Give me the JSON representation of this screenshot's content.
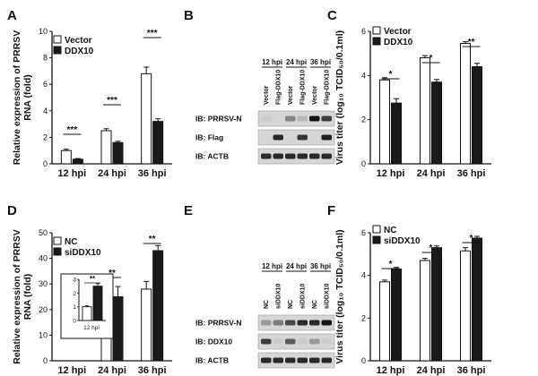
{
  "panel_letters": [
    "A",
    "B",
    "C",
    "D",
    "E",
    "F"
  ],
  "chart_data": [
    {
      "id": "A",
      "type": "bar",
      "ylabel_lines": [
        "Relative expression of PRRSV",
        "RNA (fold)"
      ],
      "categories": [
        "12 hpi",
        "24 hpi",
        "36 hpi"
      ],
      "ylim": [
        0,
        10
      ],
      "yticks": [
        "0",
        "2",
        "4",
        "6",
        "8",
        "10"
      ],
      "legend": [
        "Vector",
        "DDX10"
      ],
      "series": [
        {
          "name": "Vector",
          "values": [
            1.0,
            2.5,
            6.8
          ],
          "err": [
            0.1,
            0.15,
            0.5
          ],
          "fill": "#ffffff"
        },
        {
          "name": "DDX10",
          "values": [
            0.35,
            1.6,
            3.2
          ],
          "err": [
            0.05,
            0.1,
            0.2
          ],
          "fill": "#1a1a1a"
        }
      ],
      "significance": [
        "***",
        "***",
        "***"
      ]
    },
    {
      "id": "C",
      "type": "bar",
      "ylabel_lines": [
        "Virus titer (log₁₀ TCID₅₀/0.1ml)"
      ],
      "categories": [
        "12 hpi",
        "24 hpi",
        "36 hpi"
      ],
      "ylim": [
        0,
        6
      ],
      "yticks": [
        "0",
        "2",
        "4",
        "6"
      ],
      "legend": [
        "Vector",
        "DDX10"
      ],
      "series": [
        {
          "name": "Vector",
          "values": [
            3.8,
            4.8,
            5.45
          ],
          "err": [
            0.1,
            0.1,
            0.08
          ],
          "fill": "#ffffff"
        },
        {
          "name": "DDX10",
          "values": [
            2.75,
            3.7,
            4.4
          ],
          "err": [
            0.2,
            0.12,
            0.15
          ],
          "fill": "#1a1a1a"
        }
      ],
      "significance": [
        "*",
        "*",
        "**"
      ]
    },
    {
      "id": "D",
      "type": "bar",
      "ylabel_lines": [
        "Relative expression of PRRSV",
        "RNA (fold)"
      ],
      "categories": [
        "12 hpi",
        "24 hpi",
        "36 hpi"
      ],
      "ylim": [
        0,
        50
      ],
      "yticks": [
        "0",
        "10",
        "20",
        "30",
        "40",
        "50"
      ],
      "legend": [
        "NC",
        "siDDX10"
      ],
      "series": [
        {
          "name": "NC",
          "values": [
            0,
            10,
            28
          ],
          "err": [
            0,
            2,
            3
          ],
          "fill": "#ffffff"
        },
        {
          "name": "siDDX10",
          "values": [
            0,
            25,
            43
          ],
          "err": [
            0,
            4,
            2
          ],
          "fill": "#1a1a1a"
        }
      ],
      "significance": [
        "",
        "**",
        "**"
      ],
      "inset": {
        "category": "12 hpi",
        "ylim": [
          0,
          3
        ],
        "yticks": [
          "0",
          "1",
          "2",
          "3"
        ],
        "values": [
          1.0,
          2.5
        ],
        "err": [
          0.08,
          0.18
        ],
        "significance": "**"
      }
    },
    {
      "id": "F",
      "type": "bar",
      "ylabel_lines": [
        "Virus titer (log₁₀ TCID₅₀/0.1ml)"
      ],
      "categories": [
        "12 hpi",
        "24 hpi",
        "36 hpi"
      ],
      "ylim": [
        0,
        6
      ],
      "yticks": [
        "0",
        "2",
        "4",
        "6"
      ],
      "legend": [
        "NC",
        "siDDX10"
      ],
      "series": [
        {
          "name": "NC",
          "values": [
            3.7,
            4.7,
            5.15
          ],
          "err": [
            0.08,
            0.1,
            0.15
          ],
          "fill": "#ffffff"
        },
        {
          "name": "siDDX10",
          "values": [
            4.3,
            5.3,
            5.75
          ],
          "err": [
            0.08,
            0.08,
            0.08
          ],
          "fill": "#1a1a1a"
        }
      ],
      "significance": [
        "*",
        "*",
        "*"
      ]
    }
  ],
  "blots": [
    {
      "id": "B",
      "timepoints": [
        "12 hpi",
        "24 hpi",
        "36 hpi"
      ],
      "lanes": [
        "Vector",
        "Flag-DDX10",
        "Vector",
        "Flag-DDX10",
        "Vector",
        "Flag-DDX10"
      ],
      "rows": [
        {
          "label": "IB: PRRSV-N",
          "intensity": [
            0.05,
            0.0,
            0.4,
            0.15,
            0.95,
            0.75
          ]
        },
        {
          "label": "IB: Flag",
          "intensity": [
            0.0,
            0.85,
            0.0,
            0.8,
            0.0,
            0.9
          ]
        },
        {
          "label": "IB: ACTB",
          "intensity": [
            0.85,
            0.85,
            0.85,
            0.85,
            0.85,
            0.85
          ]
        }
      ]
    },
    {
      "id": "E",
      "timepoints": [
        "12 hpi",
        "24 hpi",
        "36 hpi"
      ],
      "lanes": [
        "NC",
        "siDDX10",
        "NC",
        "siDDX10",
        "NC",
        "siDDX10"
      ],
      "rows": [
        {
          "label": "IB: PRRSV-N",
          "intensity": [
            0.3,
            0.45,
            0.7,
            0.85,
            0.85,
            0.95
          ]
        },
        {
          "label": "IB: DDX10",
          "intensity": [
            0.75,
            0.05,
            0.6,
            0.05,
            0.3,
            0.05
          ]
        },
        {
          "label": "IB: ACTB",
          "intensity": [
            0.85,
            0.85,
            0.85,
            0.85,
            0.85,
            0.85
          ]
        }
      ]
    }
  ]
}
